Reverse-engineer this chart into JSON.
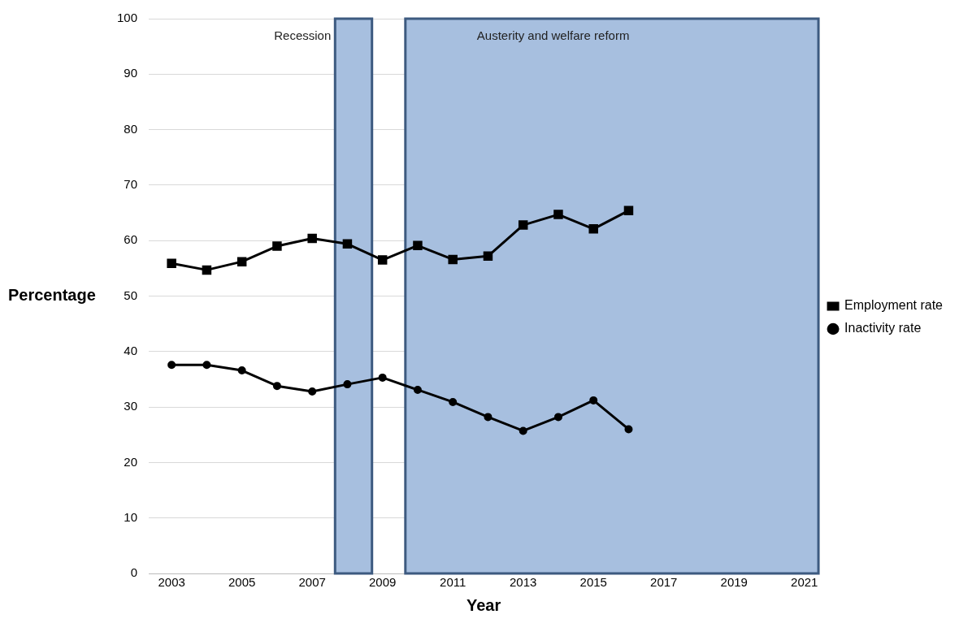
{
  "chart_data": {
    "type": "line",
    "xlabel": "Year",
    "ylabel": "Percentage",
    "x": [
      2003,
      2004,
      2005,
      2006,
      2007,
      2008,
      2009,
      2010,
      2011,
      2012,
      2013,
      2014,
      2015,
      2016
    ],
    "series": [
      {
        "name": "Employment rate",
        "color": "#000000",
        "marker": "square",
        "values": [
          55.9,
          54.7,
          56.2,
          59.0,
          60.4,
          59.4,
          56.5,
          59.1,
          56.6,
          57.2,
          62.8,
          64.7,
          62.1,
          65.4
        ]
      },
      {
        "name": "Inactivity rate",
        "color": "#000000",
        "marker": "circle",
        "values": [
          37.6,
          37.6,
          36.6,
          33.8,
          32.8,
          34.1,
          35.3,
          33.1,
          30.9,
          28.2,
          25.7,
          28.2,
          31.2,
          26.0
        ]
      }
    ],
    "xlim": [
      2002.35,
      2021.4
    ],
    "xticks": [
      2003,
      2005,
      2007,
      2009,
      2011,
      2013,
      2015,
      2017,
      2019,
      2021
    ],
    "ylim": [
      0,
      100
    ],
    "yticks": [
      0,
      10,
      20,
      30,
      40,
      50,
      60,
      70,
      80,
      90,
      100
    ],
    "bands": [
      {
        "axis": "x",
        "from": 2007.65,
        "to": 2008.7,
        "label": "Recession",
        "color": "#a7bfdf"
      },
      {
        "axis": "x",
        "from": 2009.65,
        "to": 2021.4,
        "label": "Austerity and welfare reform",
        "color": "#a7bfdf"
      }
    ],
    "grid": "y",
    "legend": "right",
    "line_style": "solid"
  }
}
